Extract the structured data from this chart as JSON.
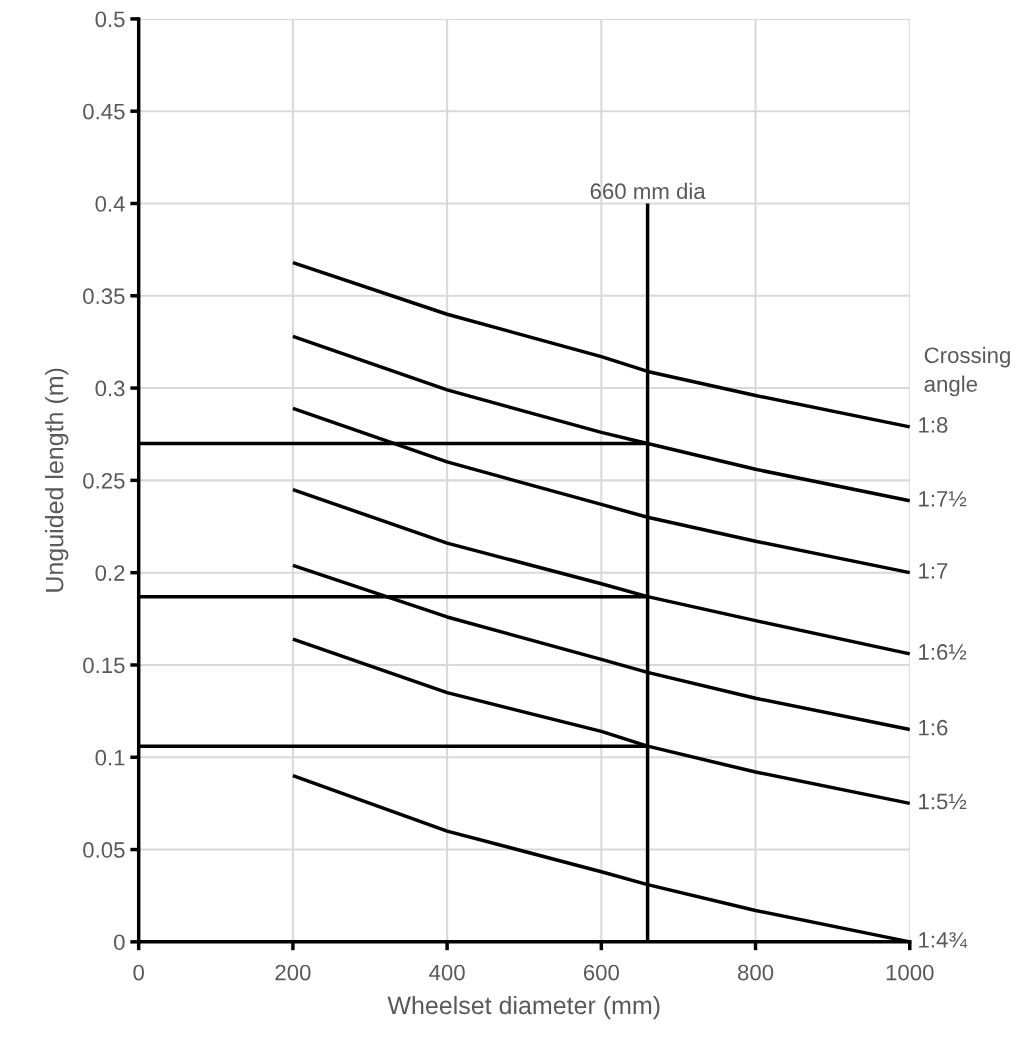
{
  "chart_data": {
    "type": "line",
    "xlabel": "Wheelset diameter (mm)",
    "ylabel": "Unguided length (m)",
    "xlim": [
      0,
      1000
    ],
    "xticks": [
      0,
      200,
      400,
      600,
      800,
      1000
    ],
    "ylim": [
      0,
      0.5
    ],
    "yticks": [
      0,
      0.05,
      0.1,
      0.15,
      0.2,
      0.25,
      0.3,
      0.35,
      0.4,
      0.45,
      0.5
    ],
    "grid": true,
    "marker": "none",
    "line_style": "solid",
    "series": [
      {
        "name": "1:8",
        "color": "#000000",
        "x": [
          200,
          400,
          600,
          660,
          800,
          1000
        ],
        "values": [
          0.368,
          0.34,
          0.317,
          0.309,
          0.296,
          0.279
        ]
      },
      {
        "name": "1:7½",
        "color": "#000000",
        "x": [
          200,
          400,
          600,
          660,
          800,
          1000
        ],
        "values": [
          0.328,
          0.299,
          0.276,
          0.27,
          0.256,
          0.239
        ]
      },
      {
        "name": "1:7",
        "color": "#000000",
        "x": [
          200,
          400,
          600,
          660,
          800,
          1000
        ],
        "values": [
          0.289,
          0.26,
          0.237,
          0.23,
          0.217,
          0.2
        ]
      },
      {
        "name": "1:6½",
        "color": "#000000",
        "x": [
          200,
          400,
          600,
          660,
          800,
          1000
        ],
        "values": [
          0.245,
          0.216,
          0.194,
          0.187,
          0.174,
          0.156
        ]
      },
      {
        "name": "1:6",
        "color": "#000000",
        "x": [
          200,
          400,
          600,
          660,
          800,
          1000
        ],
        "values": [
          0.204,
          0.176,
          0.153,
          0.146,
          0.132,
          0.115
        ]
      },
      {
        "name": "1:5½",
        "color": "#000000",
        "x": [
          200,
          400,
          600,
          660,
          800,
          1000
        ],
        "values": [
          0.164,
          0.135,
          0.114,
          0.106,
          0.092,
          0.075
        ]
      },
      {
        "name": "1:4¾",
        "color": "#000000",
        "x": [
          200,
          400,
          600,
          660,
          800,
          1000
        ],
        "values": [
          0.09,
          0.06,
          0.038,
          0.031,
          0.017,
          0.0
        ]
      },
      {
        "color": "#000000",
        "x": [
          0,
          660
        ],
        "values": [
          0.27,
          0.27
        ]
      },
      {
        "color": "#000000",
        "x": [
          0,
          660
        ],
        "values": [
          0.187,
          0.187
        ]
      },
      {
        "color": "#000000",
        "x": [
          0,
          660
        ],
        "values": [
          0.106,
          0.106
        ]
      },
      {
        "color": "#000000",
        "x": [
          660,
          660
        ],
        "values": [
          0,
          0.4
        ]
      }
    ],
    "annotations": [
      {
        "text": "660 mm dia",
        "x": 660,
        "y": 0.4
      },
      "Crossing angle"
    ]
  }
}
